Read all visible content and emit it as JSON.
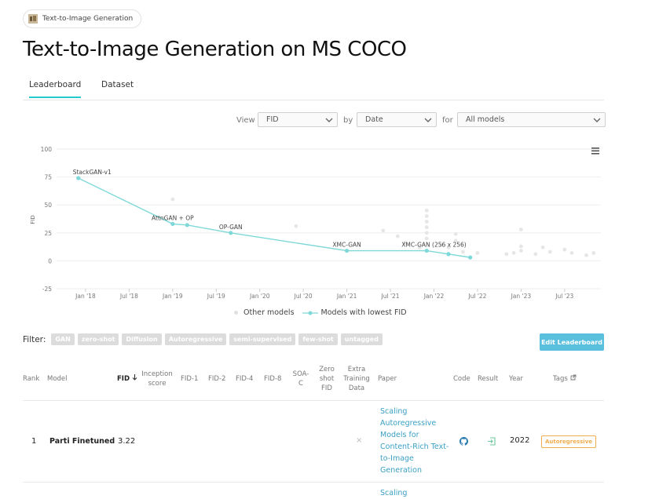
{
  "task_pill": {
    "label": "Text-to-Image Generation"
  },
  "page_title": "Text-to-Image Generation on MS COCO",
  "tabs": [
    {
      "label": "Leaderboard"
    },
    {
      "label": "Dataset"
    }
  ],
  "controls": {
    "view_label": "View",
    "view_value": "FID",
    "by_label": "by",
    "by_value": "Date",
    "for_label": "for",
    "for_value": "All models"
  },
  "chart_data": {
    "type": "scatter",
    "ylabel": "FID",
    "ylim": [
      -25,
      100
    ],
    "y_ticks": [
      "100",
      "75",
      "50",
      "25",
      "0",
      "-25"
    ],
    "x_ticks": [
      "Jan '18",
      "Jul '18",
      "Jan '19",
      "Jul '19",
      "Jan '20",
      "Jul '20",
      "Jan '21",
      "Jul '21",
      "Jan '22",
      "Jul '22",
      "Jan '23",
      "Jul '23"
    ],
    "series": [
      {
        "name": "Models with lowest FID",
        "color": "#7fd8d8",
        "points": [
          {
            "x": "2017-12",
            "y": 74
          },
          {
            "x": "2019-01",
            "y": 33
          },
          {
            "x": "2019-03",
            "y": 32
          },
          {
            "x": "2019-09",
            "y": 25
          },
          {
            "x": "2021-01",
            "y": 9
          },
          {
            "x": "2021-12",
            "y": 9
          },
          {
            "x": "2022-03",
            "y": 6
          },
          {
            "x": "2022-06",
            "y": 3
          }
        ]
      },
      {
        "name": "Other models",
        "color": "#e6e6e6",
        "points": [
          {
            "x": "2019-01",
            "y": 55
          },
          {
            "x": "2020-06",
            "y": 31
          },
          {
            "x": "2021-06",
            "y": 27
          },
          {
            "x": "2021-08",
            "y": 22
          },
          {
            "x": "2021-09",
            "y": 16
          },
          {
            "x": "2021-11",
            "y": 12
          },
          {
            "x": "2021-12",
            "y": 45
          },
          {
            "x": "2021-12",
            "y": 40
          },
          {
            "x": "2021-12",
            "y": 35
          },
          {
            "x": "2021-12",
            "y": 30
          },
          {
            "x": "2021-12",
            "y": 25
          },
          {
            "x": "2021-12",
            "y": 20
          },
          {
            "x": "2022-02",
            "y": 14
          },
          {
            "x": "2022-03",
            "y": 12
          },
          {
            "x": "2022-04",
            "y": 24
          },
          {
            "x": "2022-04",
            "y": 18
          },
          {
            "x": "2022-05",
            "y": 8
          },
          {
            "x": "2022-07",
            "y": 7
          },
          {
            "x": "2022-11",
            "y": 6
          },
          {
            "x": "2022-12",
            "y": 7
          },
          {
            "x": "2023-01",
            "y": 28
          },
          {
            "x": "2023-01",
            "y": 13
          },
          {
            "x": "2023-01",
            "y": 9
          },
          {
            "x": "2023-03",
            "y": 6
          },
          {
            "x": "2023-04",
            "y": 12
          },
          {
            "x": "2023-05",
            "y": 8
          },
          {
            "x": "2023-07",
            "y": 10
          },
          {
            "x": "2023-08",
            "y": 7
          },
          {
            "x": "2023-10",
            "y": 5
          },
          {
            "x": "2023-11",
            "y": 7
          }
        ]
      }
    ],
    "annotations": [
      {
        "text": "StackGAN-v1",
        "x": "2017-12",
        "y": 74
      },
      {
        "text": "AttnGAN + OP",
        "x": "2019-01",
        "y": 33
      },
      {
        "text": "OP-GAN",
        "x": "2019-09",
        "y": 25
      },
      {
        "text": "XMC-GAN",
        "x": "2021-01",
        "y": 9
      },
      {
        "text": "XMC-GAN (256 x 256)",
        "x": "2022-01",
        "y": 9
      }
    ]
  },
  "legend": {
    "other": "Other models",
    "lowest": "Models with lowest FID"
  },
  "filter": {
    "label": "Filter:",
    "chips": [
      "GAN",
      "zero-shot",
      "Diffusion",
      "Autoregressive",
      "semi-supervised",
      "few-shot",
      "untagged"
    ]
  },
  "edit_button": "Edit Leaderboard",
  "table": {
    "headers": {
      "rank": "Rank",
      "model": "Model",
      "fid": "FID",
      "inception": [
        "Inception",
        "score"
      ],
      "fid1": "FID-1",
      "fid2": "FID-2",
      "fid4": "FID-4",
      "fid8": "FID-8",
      "soac": [
        "SOA-",
        "C"
      ],
      "zeroshot": [
        "Zero",
        "shot",
        "FID"
      ],
      "extra": [
        "Extra",
        "Training",
        "Data"
      ],
      "paper": "Paper",
      "code": "Code",
      "result": "Result",
      "year": "Year",
      "tags": "Tags"
    },
    "rows": [
      {
        "rank": "1",
        "model": "Parti Finetuned",
        "fid": "3.22",
        "extra": "×",
        "paper": [
          "Scaling",
          "Autoregressive",
          "Models for",
          "Content-Rich Text-",
          "to-Image",
          "Generation"
        ],
        "year": "2022",
        "tag": "Autoregressive"
      },
      {
        "paper_partial": "Scaling"
      }
    ]
  }
}
